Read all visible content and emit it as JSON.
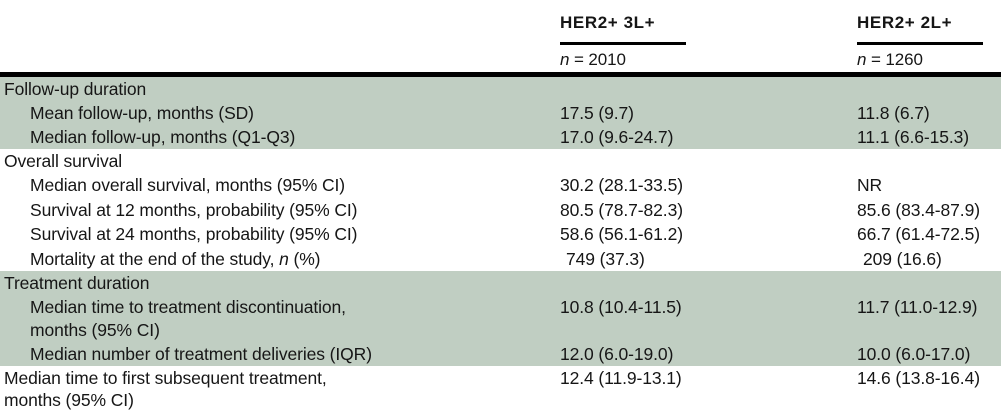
{
  "colors": {
    "row_highlight_green": "#c0cec2",
    "rule_black": "#000000",
    "text": "#161616",
    "background": "#ffffff"
  },
  "table": {
    "column_headers": [
      {
        "title": "HER2+ 3L+",
        "n_italic": "n",
        "n_value": " = 2010"
      },
      {
        "title": "HER2+ 2L+",
        "n_italic": "n",
        "n_value": " = 1260"
      }
    ],
    "rows": [
      {
        "label": "Follow-up duration",
        "type": "section",
        "col1": "",
        "col2": ""
      },
      {
        "label": "Mean follow-up, months (SD)",
        "col1": "17.5 (9.7)",
        "col2": "11.8 (6.7)"
      },
      {
        "label": "Median follow-up, months (Q1-Q3)",
        "col1": "17.0 (9.6-24.7)",
        "col2": "11.1 (6.6-15.3)"
      },
      {
        "label": "Overall survival",
        "type": "section",
        "col1": "",
        "col2": ""
      },
      {
        "label": "Median overall survival, months (95% CI)",
        "col1": "30.2 (28.1-33.5)",
        "col2": "NR"
      },
      {
        "label": "Survival at 12 months, probability (95% CI)",
        "col1": "80.5 (78.7-82.3)",
        "col2": "85.6 (83.4-87.9)"
      },
      {
        "label": "Survival at 24 months, probability (95% CI)",
        "col1": "58.6 (56.1-61.2)",
        "col2": "66.7 (61.4-72.5)"
      },
      {
        "label_prefix": "Mortality at the end of the study, ",
        "label_italic": "n",
        "label_suffix": " (%)",
        "col1": "749 (37.3)",
        "col2": "209 (16.6)"
      },
      {
        "label": "Treatment duration",
        "type": "section",
        "col1": "",
        "col2": ""
      },
      {
        "label": "Median time to treatment discontinuation,\nmonths (95% CI)",
        "col1": "10.8 (10.4-11.5)",
        "col2": "11.7 (11.0-12.9)"
      },
      {
        "label": "Median number of treatment deliveries (IQR)",
        "col1": "12.0 (6.0-19.0)",
        "col2": "10.0 (6.0-17.0)"
      },
      {
        "label": "Median time to first subsequent treatment,\nmonths (95% CI)",
        "col1": "12.4 (11.9-13.1)",
        "col2": "14.6 (13.8-16.4)"
      }
    ]
  }
}
